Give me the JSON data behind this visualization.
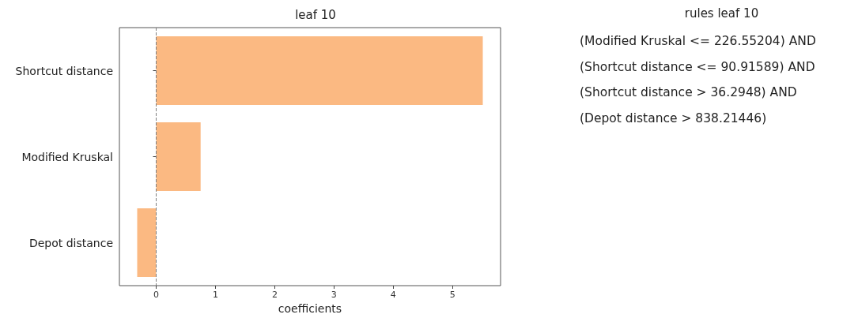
{
  "chart_data": [
    {
      "type": "bar",
      "orientation": "horizontal",
      "title": "leaf 10",
      "xlabel": "coefficients",
      "categories": [
        "Shortcut distance",
        "Modified Kruskal",
        "Depot distance"
      ],
      "values": [
        5.51,
        0.75,
        -0.32
      ],
      "color": "#fbb982",
      "xlim": [
        -0.62,
        5.81
      ],
      "xticks": [
        0,
        1,
        2,
        3,
        4,
        5
      ],
      "grid": false,
      "ref_lines": [
        {
          "axis": "x",
          "value": 0,
          "label": null,
          "color": "#808080",
          "line_style": "dashed"
        }
      ]
    },
    {
      "type": "other",
      "title": "rules leaf 10",
      "annotations": [
        "(Modified Kruskal <= 226.55204) AND",
        "(Shortcut distance <= 90.91589) AND",
        "(Shortcut distance > 36.2948) AND",
        "(Depot distance > 838.21446)"
      ]
    }
  ]
}
